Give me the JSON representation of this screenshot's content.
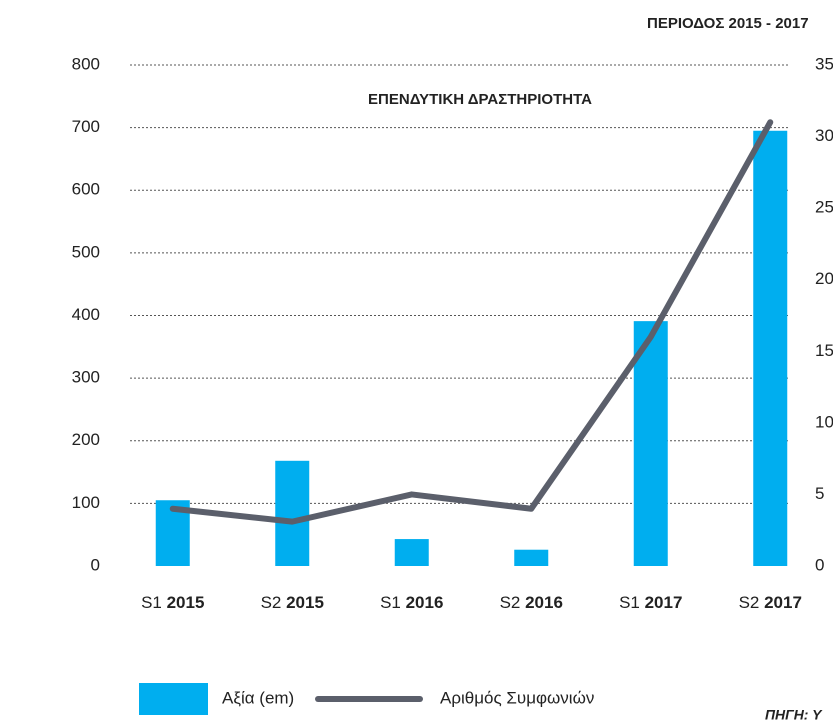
{
  "chart_data": {
    "type": "bar_line",
    "subtitle": "ΠΕΡΙΟΔΟΣ 2015 - 2017",
    "title": "ΕΠΕΝΔΥΤΙΚΗ ΔΡΑΣΤΗΡΙΟΤΗΤΑ",
    "source": "ΠΗΓΗ: Υ",
    "categories": [
      "S1 2015",
      "S2 2015",
      "S1 2016",
      "S2 2016",
      "S1 2017",
      "S2 2017"
    ],
    "series": [
      {
        "name": "Αξία (em)",
        "color": "#00aeef",
        "kind": "bar",
        "values": [
          105,
          168,
          43,
          26,
          391,
          695
        ]
      },
      {
        "name": "Αριθμός Συμφωνιών",
        "color": "#5b5f6b",
        "kind": "line",
        "axis": "y2",
        "values": [
          4,
          3.1,
          5,
          4,
          16,
          31
        ]
      }
    ],
    "ylim": [
      0,
      800
    ],
    "yticks": [
      0,
      100,
      200,
      300,
      400,
      500,
      600,
      700,
      800
    ],
    "y2lim": [
      0,
      35
    ],
    "y2ticks": [
      0,
      5,
      10,
      15,
      20,
      25,
      30,
      35
    ],
    "grid": true
  }
}
